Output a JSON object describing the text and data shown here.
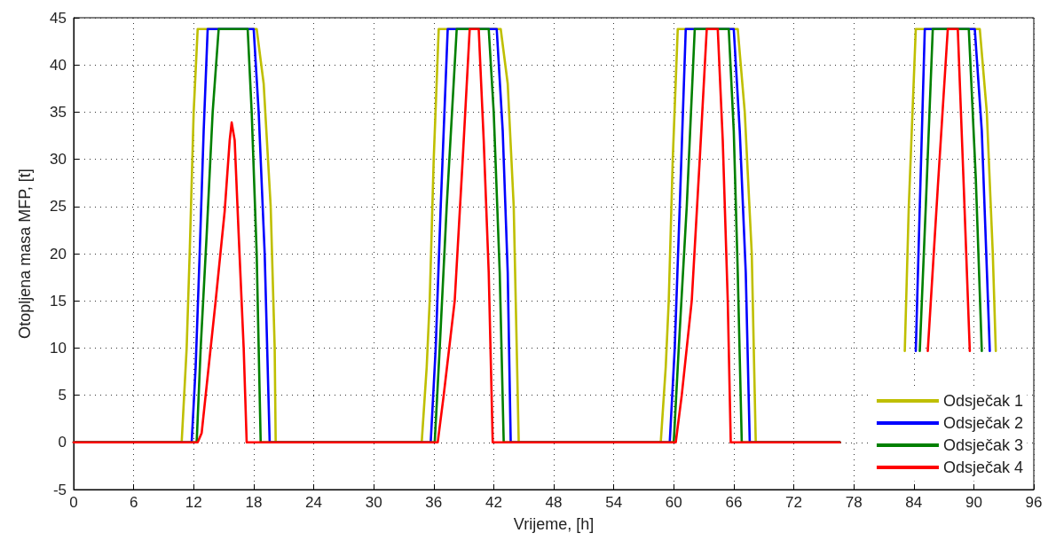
{
  "chart_data": {
    "type": "line",
    "xlabel": "Vrijeme, [h]",
    "ylabel": "Otopljena masa MFP, [t]",
    "xlim": [
      0,
      96
    ],
    "xticks": [
      0,
      6,
      12,
      18,
      24,
      30,
      36,
      42,
      48,
      54,
      60,
      66,
      72,
      78,
      84,
      90,
      96
    ],
    "ylim": [
      -5,
      45
    ],
    "yticks": [
      -5,
      0,
      5,
      10,
      15,
      20,
      25,
      30,
      35,
      40,
      45
    ],
    "grid": true,
    "legend": "bottom right",
    "line_style": "solid",
    "marker": "none",
    "series": [
      {
        "name": "Odsječak 1",
        "color": "#bfbf00",
        "x": [
          0,
          10.8,
          11.3,
          11.6,
          12.0,
          12.4,
          18.3,
          19.0,
          19.7,
          20.1,
          20.2,
          34.8,
          35.3,
          35.6,
          36.0,
          36.5,
          42.7,
          43.4,
          44.0,
          44.5,
          58.7,
          59.2,
          59.5,
          59.9,
          60.4,
          66.4,
          67.1,
          67.8,
          68.2,
          76.6,
          80,
          83.1,
          83.5,
          84.2,
          90.6,
          91.3,
          91.9,
          92.2
        ],
        "values": [
          0,
          0,
          10,
          20,
          35,
          43.8,
          43.8,
          38,
          25,
          10,
          0,
          0,
          8,
          15,
          30,
          43.8,
          43.8,
          38,
          25,
          0,
          0,
          8,
          15,
          30,
          43.8,
          43.8,
          35,
          20,
          0,
          0,
          null,
          9.7,
          25,
          43.8,
          43.8,
          35,
          20,
          9.7
        ]
      },
      {
        "name": "Odsječak 2",
        "color": "#0000ff",
        "x": [
          0,
          11.8,
          12.2,
          12.6,
          13.0,
          13.4,
          18.0,
          18.5,
          19.1,
          19.6,
          35.7,
          36.2,
          36.7,
          37.4,
          42.3,
          42.9,
          43.4,
          43.7,
          59.6,
          60.1,
          60.6,
          61.2,
          66.0,
          66.6,
          67.2,
          67.6,
          76.6,
          80,
          84.2,
          84.6,
          85.1,
          90.1,
          90.8,
          91.6
        ],
        "values": [
          0,
          0,
          8,
          20,
          33,
          43.8,
          43.8,
          35,
          20,
          0,
          0,
          10,
          25,
          43.8,
          43.8,
          33,
          18,
          0,
          0,
          10,
          25,
          43.8,
          43.8,
          33,
          18,
          0,
          0,
          null,
          9.7,
          25,
          43.8,
          43.8,
          33,
          9.7
        ]
      },
      {
        "name": "Odsječak 3",
        "color": "#008000",
        "x": [
          0,
          12.3,
          12.7,
          13.3,
          13.9,
          14.5,
          17.4,
          17.8,
          18.3,
          18.7,
          36.1,
          36.6,
          37.3,
          38.3,
          41.5,
          42.0,
          42.6,
          43.0,
          60.0,
          60.5,
          61.3,
          62.1,
          65.5,
          66.0,
          66.4,
          66.8,
          76.6,
          80,
          84.6,
          85.2,
          85.9,
          89.5,
          90.2,
          90.8
        ],
        "values": [
          0,
          0,
          10,
          22,
          35,
          43.8,
          43.8,
          35,
          20,
          0,
          0,
          10,
          25,
          43.8,
          43.8,
          35,
          18,
          0,
          0,
          10,
          25,
          43.8,
          43.8,
          33,
          18,
          0,
          0,
          null,
          9.7,
          25,
          43.8,
          43.8,
          28,
          9.7
        ]
      },
      {
        "name": "Odsječak 4",
        "color": "#ff0000",
        "x": [
          0,
          12.4,
          12.8,
          13.3,
          14.2,
          15.1,
          15.6,
          15.8,
          16.1,
          16.5,
          17.0,
          17.3,
          36.4,
          37.0,
          38.1,
          38.9,
          39.6,
          40.5,
          41.0,
          41.5,
          41.9,
          60.2,
          60.8,
          61.8,
          62.6,
          63.3,
          64.4,
          64.9,
          65.4,
          65.7,
          76.6,
          80,
          85.4,
          86.4,
          87.4,
          88.4,
          89.0,
          89.6
        ],
        "values": [
          0,
          0,
          1,
          6,
          15,
          24.5,
          32,
          33.9,
          32,
          22,
          10,
          0,
          0,
          5,
          15,
          30,
          43.8,
          43.8,
          32,
          18,
          0,
          0,
          5,
          15,
          30,
          43.8,
          43.8,
          32,
          15,
          0,
          0,
          null,
          9.7,
          27,
          43.8,
          43.8,
          27,
          9.7
        ]
      }
    ]
  }
}
